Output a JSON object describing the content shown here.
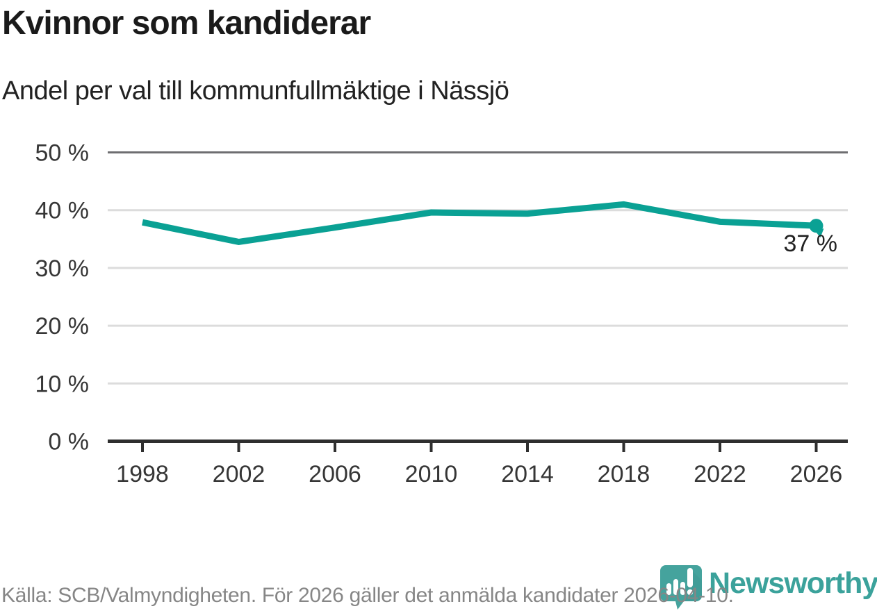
{
  "header": {
    "title": "Kvinnor som kandiderar",
    "subtitle": "Andel per val till kommunfullmäktige i Nässjö"
  },
  "chart_data": {
    "type": "line",
    "title": "Kvinnor som kandiderar",
    "subtitle": "Andel per val till kommunfullmäktige i Nässjö",
    "categories": [
      "1998",
      "2002",
      "2006",
      "2010",
      "2014",
      "2018",
      "2022",
      "2026"
    ],
    "values": [
      37.9,
      34.5,
      37.0,
      39.6,
      39.4,
      41.0,
      38.0,
      37.3
    ],
    "end_label": "37 %",
    "ylim": [
      0,
      50
    ],
    "yticks": [
      50,
      40,
      30,
      20,
      10,
      0
    ],
    "ytick_suffix": " %",
    "grid": true,
    "legend": "none",
    "line_color": "#0aa194",
    "marker_color": "#0aa194",
    "gridline_color": "#dcdcdc",
    "top_gridline_color": "#6e6e71",
    "axis_line_color": "#2f2f2f",
    "tick_label_color": "#363636",
    "end_label_color": "#222222"
  },
  "footer": {
    "source_text": "Källa: SCB/Valmyndigheten. För 2026 gäller det anmälda kandidater 2026-04-10.",
    "brand": "Newsworthy",
    "brand_color": "#3ba29b",
    "logo_color": "#45a39d",
    "logo_shade_color": "#3a938e",
    "logo_bar_color": "#ffffff"
  }
}
